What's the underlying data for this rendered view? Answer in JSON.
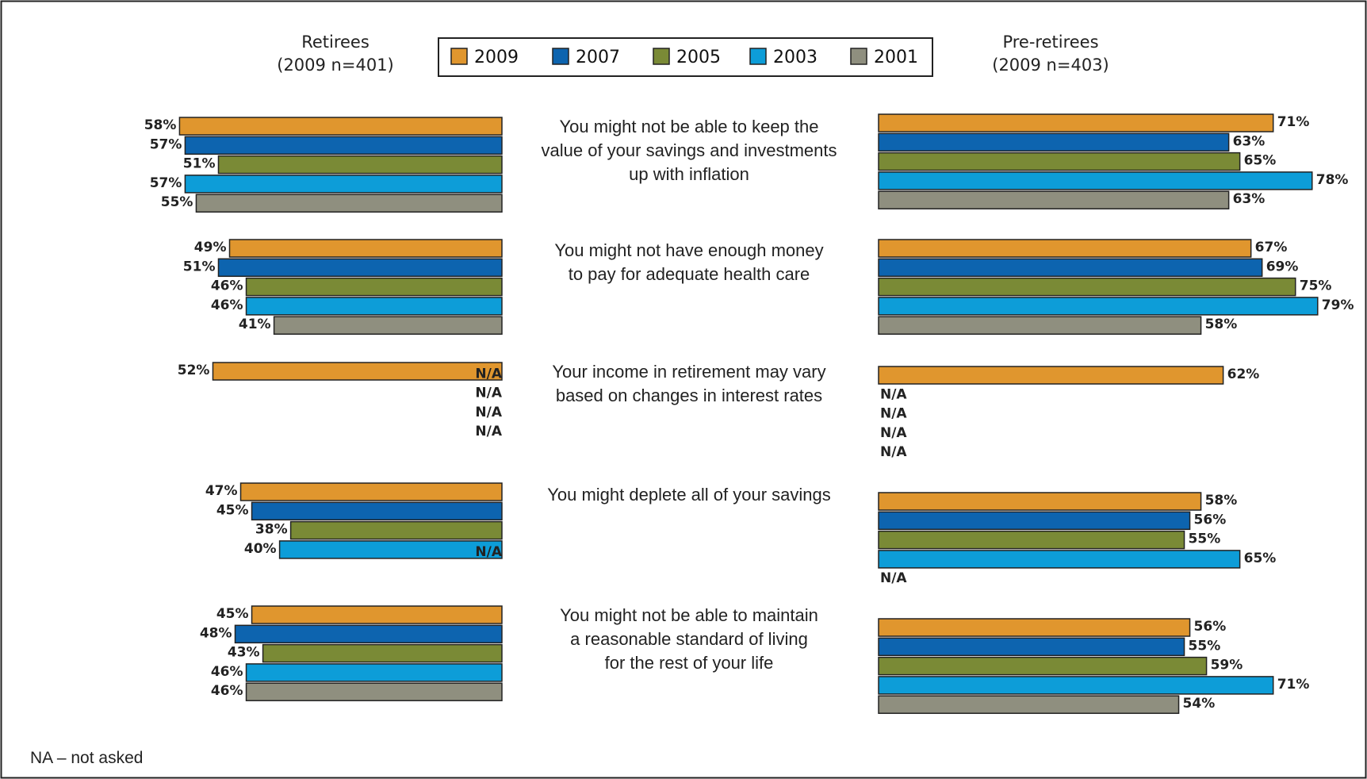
{
  "chart_data": {
    "type": "bar",
    "orientation": "horizontal",
    "legend": {
      "placement": "top-center",
      "entries": [
        {
          "name": "2009",
          "color": "#E0962E"
        },
        {
          "name": "2007",
          "color": "#0D64AF"
        },
        {
          "name": "2005",
          "color": "#7A8A36"
        },
        {
          "name": "2003",
          "color": "#0D9DD8"
        },
        {
          "name": "2001",
          "color": "#8F8F7F"
        }
      ]
    },
    "panels": [
      {
        "key": "retirees",
        "title": "Retirees",
        "subtitle": "(2009 n=401)"
      },
      {
        "key": "pre_retirees",
        "title": "Pre-retirees",
        "subtitle": "(2009 n=403)"
      }
    ],
    "categories": [
      {
        "label": [
          "You might not be able to keep the",
          "value of your savings and investments",
          "up with inflation"
        ],
        "retirees": [
          58,
          57,
          51,
          57,
          55
        ],
        "pre_retirees": [
          71,
          63,
          65,
          78,
          63
        ]
      },
      {
        "label": [
          "You might not have enough money",
          "to pay for adequate health care"
        ],
        "retirees": [
          49,
          51,
          46,
          46,
          41
        ],
        "pre_retirees": [
          67,
          69,
          75,
          79,
          58
        ]
      },
      {
        "label": [
          "Your income in retirement may vary",
          "based on changes in interest rates"
        ],
        "retirees": [
          52,
          null,
          null,
          null,
          null
        ],
        "pre_retirees": [
          62,
          null,
          null,
          null,
          null
        ]
      },
      {
        "label": [
          "You might deplete all of your savings"
        ],
        "retirees": [
          47,
          45,
          38,
          40,
          null
        ],
        "pre_retirees": [
          58,
          56,
          55,
          65,
          null
        ]
      },
      {
        "label": [
          "You might not be able to maintain",
          "a reasonable standard of living",
          "for the rest of your life"
        ],
        "retirees": [
          45,
          48,
          43,
          46,
          46
        ],
        "pre_retirees": [
          56,
          55,
          59,
          71,
          54
        ]
      }
    ],
    "na_label": "N/A",
    "value_suffix": "%",
    "xlim": [
      0,
      100
    ],
    "grid": false
  },
  "footnote": "NA – not asked"
}
